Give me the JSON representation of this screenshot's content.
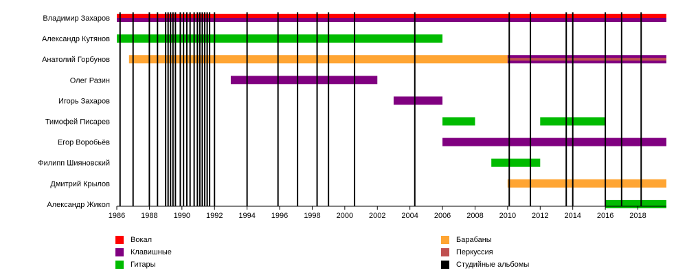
{
  "chart_data": {
    "type": "timeline",
    "x_ticks": [
      "1986",
      "1988",
      "1990",
      "1992",
      "1994",
      "1996",
      "1998",
      "2000",
      "2002",
      "2004",
      "2006",
      "2008",
      "2010",
      "2012",
      "2014",
      "2016",
      "2018"
    ],
    "xlim": [
      1986.0,
      2019.75
    ],
    "members": [
      "Владимир Захаров",
      "Александр Кутянов",
      "Анатолий Горбунов",
      "Олег Разин",
      "Игорь Захаров",
      "Тимофей Писарев",
      "Егор Воробьёв",
      "Филипп Шияновский",
      "Дмитрий Крылов",
      "Александр Жикол"
    ],
    "roles": [
      {
        "key": "vocal",
        "label": "Вокал",
        "color": "#ff0000"
      },
      {
        "key": "keys",
        "label": "Клавишные",
        "color": "#800080"
      },
      {
        "key": "guitar",
        "label": "Гитары",
        "color": "#00bb00"
      },
      {
        "key": "drums",
        "label": "Барабаны",
        "color": "#ffa533"
      },
      {
        "key": "perc",
        "label": "Перкуссия",
        "color": "#c05050"
      },
      {
        "key": "albums",
        "label": "Студийные альбомы",
        "color": "#000000"
      }
    ],
    "bars": [
      {
        "member": 0,
        "role": "vocal",
        "start": 1986.0,
        "end": 2019.75,
        "part": "top"
      },
      {
        "member": 0,
        "role": "keys",
        "start": 1986.0,
        "end": 2019.75,
        "part": "bottom"
      },
      {
        "member": 1,
        "role": "guitar",
        "start": 1986.0,
        "end": 2006.0,
        "part": "full"
      },
      {
        "member": 2,
        "role": "drums",
        "start": 1986.75,
        "end": 2010.0,
        "part": "full"
      },
      {
        "member": 2,
        "role": "keys",
        "start": 2010.0,
        "end": 2019.75,
        "part": "full"
      },
      {
        "member": 2,
        "role": "perc",
        "start": 2010.0,
        "end": 2019.75,
        "part": "center"
      },
      {
        "member": 3,
        "role": "keys",
        "start": 1993.0,
        "end": 2002.0,
        "part": "full"
      },
      {
        "member": 4,
        "role": "keys",
        "start": 2003.0,
        "end": 2006.0,
        "part": "full"
      },
      {
        "member": 5,
        "role": "guitar",
        "start": 2006.0,
        "end": 2008.0,
        "part": "full"
      },
      {
        "member": 5,
        "role": "guitar",
        "start": 2012.0,
        "end": 2016.0,
        "part": "full"
      },
      {
        "member": 6,
        "role": "keys",
        "start": 2006.0,
        "end": 2019.75,
        "part": "full"
      },
      {
        "member": 7,
        "role": "guitar",
        "start": 2009.0,
        "end": 2012.0,
        "part": "full"
      },
      {
        "member": 8,
        "role": "drums",
        "start": 2010.0,
        "end": 2019.75,
        "part": "full"
      },
      {
        "member": 9,
        "role": "guitar",
        "start": 2016.0,
        "end": 2019.75,
        "part": "full"
      }
    ],
    "albums": [
      1986.2,
      1987.0,
      1988.0,
      1988.5,
      1989.0,
      1989.15,
      1989.3,
      1989.45,
      1989.6,
      1989.9,
      1990.1,
      1990.3,
      1990.5,
      1990.75,
      1990.95,
      1991.1,
      1991.25,
      1991.4,
      1991.55,
      1991.7,
      1992.0,
      1994.0,
      1995.9,
      1997.1,
      1998.3,
      1999.0,
      2000.6,
      2004.3,
      2010.1,
      2011.4,
      2013.6,
      2014.0,
      2016.0,
      2017.0,
      2018.2
    ],
    "legend": {
      "left": [
        "vocal",
        "keys",
        "guitar"
      ],
      "right": [
        "drums",
        "perc",
        "albums"
      ]
    }
  }
}
